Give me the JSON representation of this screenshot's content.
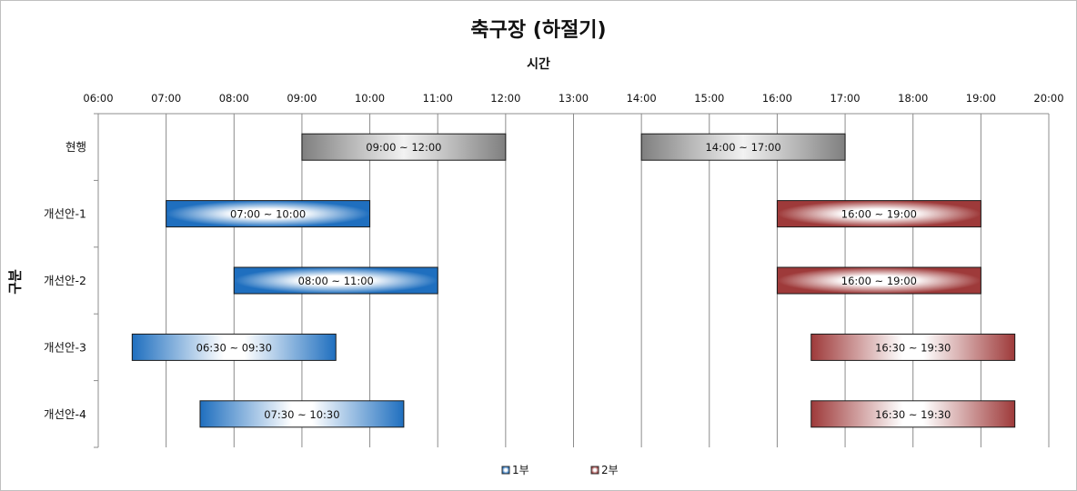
{
  "chart_data": {
    "type": "bar",
    "orientation": "horizontal-range",
    "title": "축구장 (하절기)",
    "xlabel": "시간",
    "ylabel": "구분",
    "xlim": [
      "06:00",
      "20:00"
    ],
    "x_ticks": [
      "06:00",
      "07:00",
      "08:00",
      "09:00",
      "10:00",
      "11:00",
      "12:00",
      "13:00",
      "14:00",
      "15:00",
      "16:00",
      "17:00",
      "18:00",
      "19:00",
      "20:00"
    ],
    "grid": "vertical",
    "legend_position": "bottom",
    "categories": [
      "현행",
      "개선안-1",
      "개선안-2",
      "개선안-3",
      "개선안-4"
    ],
    "series": [
      {
        "name": "1부",
        "color": "#1f6fbf",
        "ranges": [
          {
            "category": "현행",
            "start": "09:00",
            "end": "12:00",
            "label": "09:00 ~ 12:00",
            "style": "gray"
          },
          {
            "category": "개선안-1",
            "start": "07:00",
            "end": "10:00",
            "label": "07:00 ~ 10:00",
            "style": "center"
          },
          {
            "category": "개선안-2",
            "start": "08:00",
            "end": "11:00",
            "label": "08:00 ~ 11:00",
            "style": "center"
          },
          {
            "category": "개선안-3",
            "start": "06:30",
            "end": "09:30",
            "label": "06:30 ~ 09:30",
            "style": "horizontal"
          },
          {
            "category": "개선안-4",
            "start": "07:30",
            "end": "10:30",
            "label": "07:30 ~ 10:30",
            "style": "horizontal"
          }
        ]
      },
      {
        "name": "2부",
        "color": "#9e3a3a",
        "ranges": [
          {
            "category": "현행",
            "start": "14:00",
            "end": "17:00",
            "label": "14:00 ~ 17:00",
            "style": "gray"
          },
          {
            "category": "개선안-1",
            "start": "16:00",
            "end": "19:00",
            "label": "16:00 ~ 19:00",
            "style": "center"
          },
          {
            "category": "개선안-2",
            "start": "16:00",
            "end": "19:00",
            "label": "16:00 ~ 19:00",
            "style": "center"
          },
          {
            "category": "개선안-3",
            "start": "16:30",
            "end": "19:30",
            "label": "16:30 ~ 19:30",
            "style": "horizontal"
          },
          {
            "category": "개선안-4",
            "start": "16:30",
            "end": "19:30",
            "label": "16:30 ~ 19:30",
            "style": "horizontal"
          }
        ]
      }
    ]
  }
}
